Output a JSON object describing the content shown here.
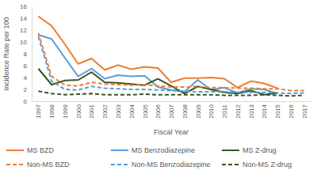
{
  "chart_data": {
    "type": "line",
    "x_label": "Fiscal Year",
    "y_label": "Incidence Rate per 100",
    "categories": [
      "1997",
      "1998",
      "1999",
      "2000",
      "2001",
      "2002",
      "2003",
      "2004",
      "2005",
      "2006",
      "2007",
      "2008",
      "2009",
      "2010",
      "2011",
      "2012",
      "2013",
      "2014",
      "2015",
      "2016",
      "2017"
    ],
    "ylim": [
      0,
      16
    ],
    "yticks": [
      0,
      2,
      4,
      6,
      8,
      10,
      12,
      14,
      16
    ],
    "grid": false,
    "legend": "bottom",
    "series": [
      {
        "name": "MS BZD",
        "color": "#ED7D31",
        "line_style": "solid",
        "values": [
          14.3,
          12.7,
          9.6,
          6.3,
          7.2,
          5.3,
          6.1,
          5.4,
          5.8,
          5.6,
          3.2,
          3.9,
          3.9,
          4.0,
          3.8,
          2.3,
          3.4,
          3.0,
          2.2,
          null,
          null
        ]
      },
      {
        "name": "MS Benzodiazepine",
        "color": "#5B9BD5",
        "line_style": "solid",
        "values": [
          11.2,
          10.5,
          7.3,
          4.2,
          5.5,
          3.8,
          4.4,
          4.2,
          4.3,
          2.4,
          1.9,
          1.6,
          3.6,
          1.9,
          2.3,
          1.4,
          2.1,
          2.0,
          1.3,
          null,
          null
        ]
      },
      {
        "name": "MS Z-drug",
        "color": "#375623",
        "line_style": "solid",
        "values": [
          5.5,
          2.8,
          3.5,
          3.6,
          4.9,
          3.2,
          3.1,
          2.9,
          2.7,
          3.8,
          2.6,
          1.3,
          2.5,
          2.0,
          1.5,
          1.3,
          1.8,
          1.1,
          1.4,
          null,
          null
        ]
      },
      {
        "name": "Non-MS BZD",
        "color": "#ED7D31",
        "line_style": "dashed",
        "values": [
          11.5,
          4.2,
          2.7,
          2.6,
          3.2,
          2.9,
          2.8,
          2.7,
          2.8,
          2.6,
          2.4,
          2.4,
          2.5,
          2.3,
          2.3,
          2.2,
          2.2,
          2.1,
          2.1,
          1.8,
          1.8
        ]
      },
      {
        "name": "Non-MS Benzodiazepine",
        "color": "#5B9BD5",
        "line_style": "dashed",
        "values": [
          10.9,
          3.4,
          2.0,
          1.9,
          2.5,
          2.2,
          2.1,
          2.0,
          2.0,
          1.9,
          1.8,
          1.7,
          1.6,
          1.6,
          1.6,
          1.5,
          1.5,
          1.5,
          1.4,
          1.3,
          1.4
        ]
      },
      {
        "name": "Non-MS Z-drug",
        "color": "#375623",
        "line_style": "dashed",
        "values": [
          1.7,
          1.3,
          1.1,
          1.2,
          1.3,
          1.1,
          1.1,
          1.1,
          1.2,
          1.1,
          1.1,
          1.1,
          1.1,
          1.1,
          1.0,
          1.0,
          1.0,
          1.1,
          1.0,
          0.9,
          1.0
        ]
      }
    ]
  }
}
